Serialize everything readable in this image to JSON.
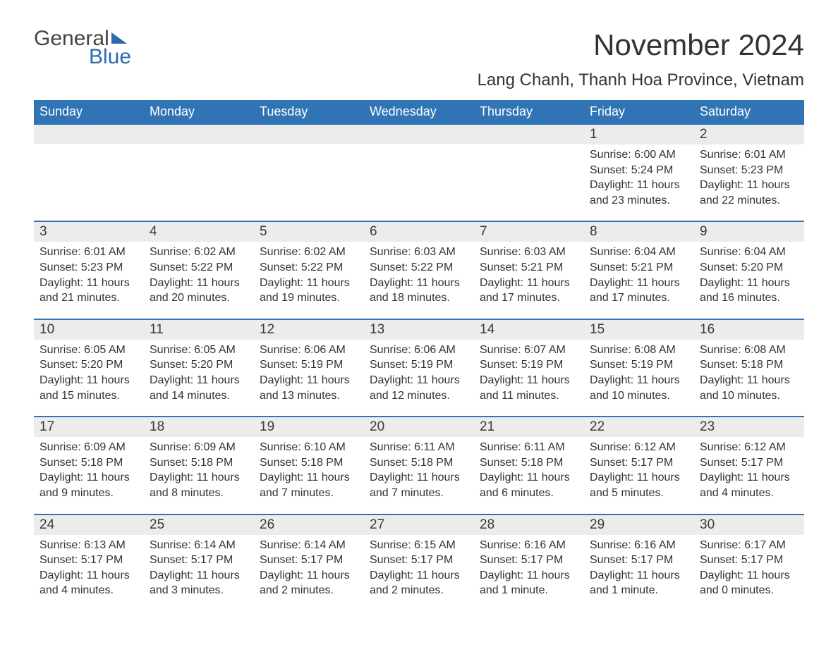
{
  "logo": {
    "text1": "General",
    "text2": "Blue"
  },
  "title": "November 2024",
  "location": "Lang Chanh, Thanh Hoa Province, Vietnam",
  "colors": {
    "header_bg": "#3074b6",
    "header_text": "#ffffff",
    "row_border": "#3074b6",
    "daynum_bg": "#ececec",
    "body_text": "#333333",
    "logo_blue": "#2c6baf",
    "page_bg": "#ffffff"
  },
  "weekdays": [
    "Sunday",
    "Monday",
    "Tuesday",
    "Wednesday",
    "Thursday",
    "Friday",
    "Saturday"
  ],
  "weeks": [
    [
      null,
      null,
      null,
      null,
      null,
      {
        "n": "1",
        "sunrise": "Sunrise: 6:00 AM",
        "sunset": "Sunset: 5:24 PM",
        "daylight": "Daylight: 11 hours and 23 minutes."
      },
      {
        "n": "2",
        "sunrise": "Sunrise: 6:01 AM",
        "sunset": "Sunset: 5:23 PM",
        "daylight": "Daylight: 11 hours and 22 minutes."
      }
    ],
    [
      {
        "n": "3",
        "sunrise": "Sunrise: 6:01 AM",
        "sunset": "Sunset: 5:23 PM",
        "daylight": "Daylight: 11 hours and 21 minutes."
      },
      {
        "n": "4",
        "sunrise": "Sunrise: 6:02 AM",
        "sunset": "Sunset: 5:22 PM",
        "daylight": "Daylight: 11 hours and 20 minutes."
      },
      {
        "n": "5",
        "sunrise": "Sunrise: 6:02 AM",
        "sunset": "Sunset: 5:22 PM",
        "daylight": "Daylight: 11 hours and 19 minutes."
      },
      {
        "n": "6",
        "sunrise": "Sunrise: 6:03 AM",
        "sunset": "Sunset: 5:22 PM",
        "daylight": "Daylight: 11 hours and 18 minutes."
      },
      {
        "n": "7",
        "sunrise": "Sunrise: 6:03 AM",
        "sunset": "Sunset: 5:21 PM",
        "daylight": "Daylight: 11 hours and 17 minutes."
      },
      {
        "n": "8",
        "sunrise": "Sunrise: 6:04 AM",
        "sunset": "Sunset: 5:21 PM",
        "daylight": "Daylight: 11 hours and 17 minutes."
      },
      {
        "n": "9",
        "sunrise": "Sunrise: 6:04 AM",
        "sunset": "Sunset: 5:20 PM",
        "daylight": "Daylight: 11 hours and 16 minutes."
      }
    ],
    [
      {
        "n": "10",
        "sunrise": "Sunrise: 6:05 AM",
        "sunset": "Sunset: 5:20 PM",
        "daylight": "Daylight: 11 hours and 15 minutes."
      },
      {
        "n": "11",
        "sunrise": "Sunrise: 6:05 AM",
        "sunset": "Sunset: 5:20 PM",
        "daylight": "Daylight: 11 hours and 14 minutes."
      },
      {
        "n": "12",
        "sunrise": "Sunrise: 6:06 AM",
        "sunset": "Sunset: 5:19 PM",
        "daylight": "Daylight: 11 hours and 13 minutes."
      },
      {
        "n": "13",
        "sunrise": "Sunrise: 6:06 AM",
        "sunset": "Sunset: 5:19 PM",
        "daylight": "Daylight: 11 hours and 12 minutes."
      },
      {
        "n": "14",
        "sunrise": "Sunrise: 6:07 AM",
        "sunset": "Sunset: 5:19 PM",
        "daylight": "Daylight: 11 hours and 11 minutes."
      },
      {
        "n": "15",
        "sunrise": "Sunrise: 6:08 AM",
        "sunset": "Sunset: 5:19 PM",
        "daylight": "Daylight: 11 hours and 10 minutes."
      },
      {
        "n": "16",
        "sunrise": "Sunrise: 6:08 AM",
        "sunset": "Sunset: 5:18 PM",
        "daylight": "Daylight: 11 hours and 10 minutes."
      }
    ],
    [
      {
        "n": "17",
        "sunrise": "Sunrise: 6:09 AM",
        "sunset": "Sunset: 5:18 PM",
        "daylight": "Daylight: 11 hours and 9 minutes."
      },
      {
        "n": "18",
        "sunrise": "Sunrise: 6:09 AM",
        "sunset": "Sunset: 5:18 PM",
        "daylight": "Daylight: 11 hours and 8 minutes."
      },
      {
        "n": "19",
        "sunrise": "Sunrise: 6:10 AM",
        "sunset": "Sunset: 5:18 PM",
        "daylight": "Daylight: 11 hours and 7 minutes."
      },
      {
        "n": "20",
        "sunrise": "Sunrise: 6:11 AM",
        "sunset": "Sunset: 5:18 PM",
        "daylight": "Daylight: 11 hours and 7 minutes."
      },
      {
        "n": "21",
        "sunrise": "Sunrise: 6:11 AM",
        "sunset": "Sunset: 5:18 PM",
        "daylight": "Daylight: 11 hours and 6 minutes."
      },
      {
        "n": "22",
        "sunrise": "Sunrise: 6:12 AM",
        "sunset": "Sunset: 5:17 PM",
        "daylight": "Daylight: 11 hours and 5 minutes."
      },
      {
        "n": "23",
        "sunrise": "Sunrise: 6:12 AM",
        "sunset": "Sunset: 5:17 PM",
        "daylight": "Daylight: 11 hours and 4 minutes."
      }
    ],
    [
      {
        "n": "24",
        "sunrise": "Sunrise: 6:13 AM",
        "sunset": "Sunset: 5:17 PM",
        "daylight": "Daylight: 11 hours and 4 minutes."
      },
      {
        "n": "25",
        "sunrise": "Sunrise: 6:14 AM",
        "sunset": "Sunset: 5:17 PM",
        "daylight": "Daylight: 11 hours and 3 minutes."
      },
      {
        "n": "26",
        "sunrise": "Sunrise: 6:14 AM",
        "sunset": "Sunset: 5:17 PM",
        "daylight": "Daylight: 11 hours and 2 minutes."
      },
      {
        "n": "27",
        "sunrise": "Sunrise: 6:15 AM",
        "sunset": "Sunset: 5:17 PM",
        "daylight": "Daylight: 11 hours and 2 minutes."
      },
      {
        "n": "28",
        "sunrise": "Sunrise: 6:16 AM",
        "sunset": "Sunset: 5:17 PM",
        "daylight": "Daylight: 11 hours and 1 minute."
      },
      {
        "n": "29",
        "sunrise": "Sunrise: 6:16 AM",
        "sunset": "Sunset: 5:17 PM",
        "daylight": "Daylight: 11 hours and 1 minute."
      },
      {
        "n": "30",
        "sunrise": "Sunrise: 6:17 AM",
        "sunset": "Sunset: 5:17 PM",
        "daylight": "Daylight: 11 hours and 0 minutes."
      }
    ]
  ]
}
